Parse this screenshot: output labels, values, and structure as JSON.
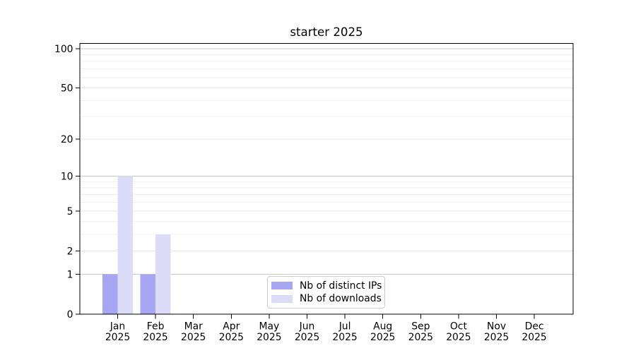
{
  "chart_data": {
    "type": "bar",
    "title": "starter 2025",
    "categories": [
      "Jan",
      "Feb",
      "Mar",
      "Apr",
      "May",
      "Jun",
      "Jul",
      "Aug",
      "Sep",
      "Oct",
      "Nov",
      "Dec"
    ],
    "x_year_label": "2025",
    "series": [
      {
        "name": "Nb of distinct IPs",
        "color": "#a6a6f2",
        "values": [
          1,
          1,
          0,
          0,
          0,
          0,
          0,
          0,
          0,
          0,
          0,
          0
        ]
      },
      {
        "name": "Nb of downloads",
        "color": "#dcdcf8",
        "values": [
          10,
          3,
          0,
          0,
          0,
          0,
          0,
          0,
          0,
          0,
          0,
          0
        ]
      }
    ],
    "yscale": "log1p",
    "yticks": [
      0,
      1,
      2,
      5,
      10,
      20,
      50,
      100
    ],
    "minor_yticks": [
      3,
      4,
      6,
      7,
      8,
      9,
      30,
      40,
      60,
      70,
      80,
      90
    ],
    "ylim": [
      0,
      110
    ],
    "grid": "horizontal",
    "legend_position": "lower center inside",
    "colors": {
      "major_grid": "#c8c8c8",
      "mid_grid": "#e6e6e6",
      "minor_grid": "#efefef",
      "spine": "#000000",
      "text": "#000000",
      "legend_border": "#cccccc",
      "background": "#ffffff"
    }
  }
}
